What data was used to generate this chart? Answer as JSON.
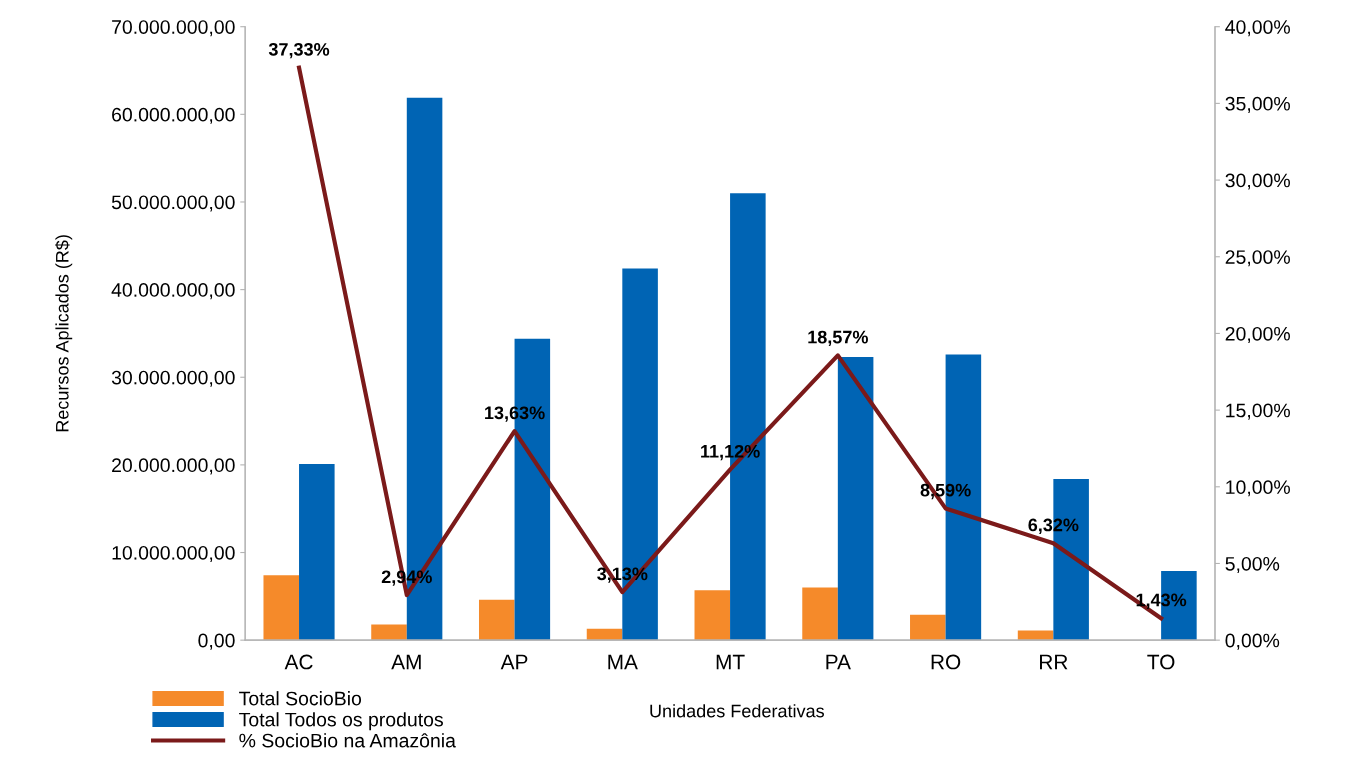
{
  "chart_data": {
    "type": "bar",
    "xlabel": "Unidades Federativas",
    "ylabel": "Recursos Aplicados (R$)",
    "categories": [
      "AC",
      "AM",
      "AP",
      "MA",
      "MT",
      "PA",
      "RO",
      "RR",
      "TO"
    ],
    "series": [
      {
        "name": "Total SocioBio",
        "color": "#f58a2a",
        "values": [
          7400000,
          1800000,
          4600000,
          1300000,
          5700000,
          6000000,
          2900000,
          1100000,
          null
        ]
      },
      {
        "name": "Total Todos os produtos",
        "color": "#0064b4",
        "values": [
          20100000,
          61900000,
          34400000,
          42400000,
          51000000,
          32300000,
          32600000,
          18400000,
          7900000
        ]
      },
      {
        "name": "% SocioBio na Amazônia",
        "type": "line",
        "axis": "y2",
        "color": "#7b1a1a",
        "marker": "none",
        "line_style": "solid",
        "values": [
          37.33,
          2.94,
          13.63,
          3.13,
          11.12,
          18.57,
          8.59,
          6.32,
          1.43
        ],
        "value_labels": [
          "37,33%",
          "2,94%",
          "13,63%",
          "3,13%",
          "11,12%",
          "18,57%",
          "8,59%",
          "6,32%",
          "1,43%"
        ]
      }
    ],
    "ylim": [
      0,
      70000000
    ],
    "yticks": [
      {
        "value": 0,
        "label": "0,00"
      },
      {
        "value": 10000000,
        "label": "10.000.000,00"
      },
      {
        "value": 20000000,
        "label": "20.000.000,00"
      },
      {
        "value": 30000000,
        "label": "30.000.000,00"
      },
      {
        "value": 40000000,
        "label": "40.000.000,00"
      },
      {
        "value": 50000000,
        "label": "50.000.000,00"
      },
      {
        "value": 60000000,
        "label": "60.000.000,00"
      },
      {
        "value": 70000000,
        "label": "70.000.000,00"
      }
    ],
    "y2lim": [
      0,
      40
    ],
    "y2ticks": [
      {
        "value": 0,
        "label": "0,00%"
      },
      {
        "value": 5,
        "label": "5,00%"
      },
      {
        "value": 10,
        "label": "10,00%"
      },
      {
        "value": 15,
        "label": "15,00%"
      },
      {
        "value": 20,
        "label": "20,00%"
      },
      {
        "value": 25,
        "label": "25,00%"
      },
      {
        "value": 30,
        "label": "30,00%"
      },
      {
        "value": 35,
        "label": "35,00%"
      },
      {
        "value": 40,
        "label": "40,00%"
      }
    ],
    "grid": false,
    "legend": "bottom left"
  }
}
